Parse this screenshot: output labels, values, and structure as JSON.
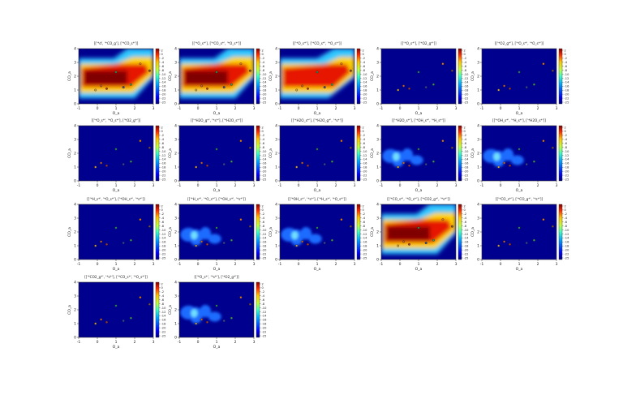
{
  "figure": {
    "rows": 4,
    "cols": 5,
    "x_label": "O_a",
    "y_label": "CO_a",
    "x_ticks": [
      -1,
      0,
      1,
      2,
      3
    ],
    "y_ticks": [
      0,
      1,
      2,
      3,
      4
    ],
    "colorbar_ticks": [
      2,
      0,
      -2,
      -4,
      -6,
      -8,
      -10,
      -12,
      -14,
      -16,
      -18,
      -20,
      -22,
      -25
    ]
  },
  "chart_data": [
    {
      "type": "heatmap",
      "title": "[['*d', '*CO_g'], ['*CO_s*']]",
      "intensity": "high",
      "pattern": "rect"
    },
    {
      "type": "heatmap",
      "title": "[['*O_s*'], ['*CO_s*', '*O_s*']]",
      "intensity": "high",
      "pattern": "rect"
    },
    {
      "type": "heatmap",
      "title": "[['*O_s*'], ['*CO_s*', '*O_s*']]",
      "intensity": "high",
      "pattern": "band"
    },
    {
      "type": "heatmap",
      "title": "[['*O_s*'], ['*O2_g*']]",
      "intensity": "none",
      "pattern": "flat"
    },
    {
      "type": "heatmap",
      "title": "[['*O2_g*'], ['*O_s*', '*O_s*']]",
      "intensity": "none",
      "pattern": "flat"
    },
    {
      "type": "heatmap",
      "title": "[['*O_s*', '*O_s*'], ['*O2_g*']]",
      "intensity": "none",
      "pattern": "flat"
    },
    {
      "type": "heatmap",
      "title": "[['*H2O_g*', '*s*'], ['*H2O_s*']]",
      "intensity": "none",
      "pattern": "flat"
    },
    {
      "type": "heatmap",
      "title": "[['*H2O_s*'], ['*H2O_g*', '*s*']]",
      "intensity": "none",
      "pattern": "flat"
    },
    {
      "type": "heatmap",
      "title": "[['*H2O_s*'], ['*OH_s*', '*H_s*']]",
      "intensity": "low",
      "pattern": "blobs"
    },
    {
      "type": "heatmap",
      "title": "[['*OH_s*', '*H_s*'], ['*H2O_s*']]",
      "intensity": "low",
      "pattern": "blobs"
    },
    {
      "type": "heatmap",
      "title": "[['*H_s*', '*O_s*'], ['*OH_s*', '*s*']]",
      "intensity": "none",
      "pattern": "flat"
    },
    {
      "type": "heatmap",
      "title": "[['*H_s*', '*O_s*'], ['*OH_s*', '*s*']]",
      "intensity": "low",
      "pattern": "blobs"
    },
    {
      "type": "heatmap",
      "title": "[['*OH_s*', '*s*'], ['*H_s*', '*O_s*']]",
      "intensity": "low",
      "pattern": "blobs"
    },
    {
      "type": "heatmap",
      "title": "[['*CO_s*', '*O_s*'], ['*CO2_g*', '*s*']]",
      "intensity": "high",
      "pattern": "rect"
    },
    {
      "type": "heatmap",
      "title": "[['*CO_s*'], ['*CO_g*', '*s*']]",
      "intensity": "none",
      "pattern": "flat"
    },
    {
      "type": "heatmap",
      "title": "[['*CO2_g*', '*s*'], ['*CO_s*', '*O_s*']]",
      "intensity": "none",
      "pattern": "flat"
    },
    {
      "type": "heatmap",
      "title": "[['*O_s*', '*s*'], ['*O2_g*']]",
      "intensity": "low",
      "pattern": "blobs"
    }
  ],
  "markers": [
    {
      "x": -0.1,
      "y": 1.0,
      "color": "#d2a03c"
    },
    {
      "x": 0.2,
      "y": 1.3,
      "color": "#c46030"
    },
    {
      "x": 0.5,
      "y": 1.1,
      "color": "#b03a2e"
    },
    {
      "x": 1.0,
      "y": 2.3,
      "color": "#2e8b57"
    },
    {
      "x": 1.4,
      "y": 1.2,
      "color": "#3b4a9c"
    },
    {
      "x": 1.8,
      "y": 1.4,
      "color": "#3e9b5a"
    },
    {
      "x": 2.3,
      "y": 2.9,
      "color": "#e07a1c"
    },
    {
      "x": 2.8,
      "y": 2.4,
      "color": "#7a5234"
    }
  ]
}
